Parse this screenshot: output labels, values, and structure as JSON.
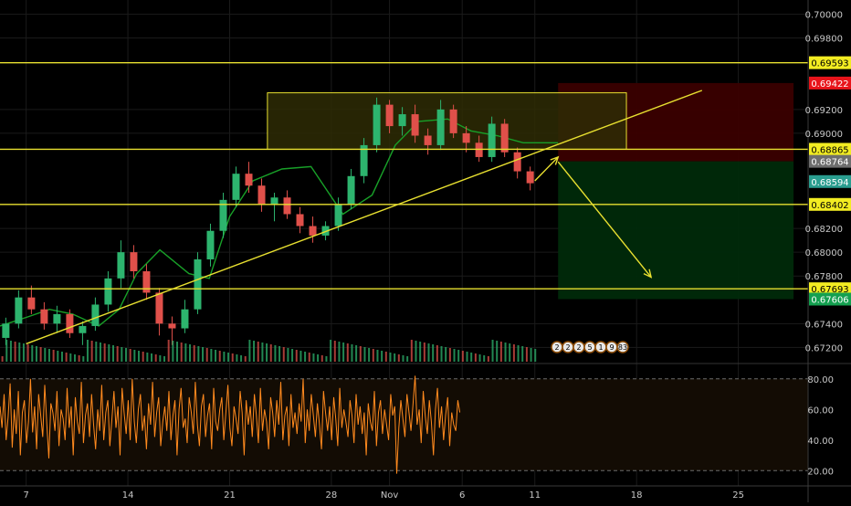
{
  "colors": {
    "background": "#000000",
    "gridline": "#1b1b1b",
    "axis_text": "#c8c8c8",
    "level_line": "#e8e030",
    "label_yellow_bg": "#f2ec22",
    "label_red_bg": "#e8141a",
    "label_gray_bg": "#6e6e6e",
    "label_teal_bg": "#2a9d8f",
    "label_green_bg": "#14a050",
    "candle_up": "#2db46e",
    "candle_down": "#e0504a",
    "ma_line": "#18a028",
    "stop_zone": "#3a0000",
    "target_zone": "#002a0a",
    "supply_zone": "#2e2c05",
    "osc_line": "#ff8a1e",
    "osc_band": "#130c04"
  },
  "chart_data": [
    {
      "type": "candlestick",
      "panel": "price",
      "y_axis_ticks": [
        "0.70000",
        "0.69800",
        "0.69200",
        "0.69000",
        "0.68200",
        "0.68000",
        "0.67800",
        "0.67400",
        "0.67200"
      ],
      "y_axis_tick_values": [
        0.7,
        0.698,
        0.692,
        0.69,
        0.682,
        0.68,
        0.678,
        0.674,
        0.672
      ],
      "x_axis_ticks": [
        "7",
        "14",
        "21",
        "28",
        "Nov",
        "6",
        "11",
        "18",
        "25"
      ],
      "x_axis_tick_values": [
        7,
        14,
        21,
        28,
        32,
        37,
        42,
        49,
        56
      ],
      "ylim": [
        0.6708,
        0.7012
      ],
      "xlim": [
        5.2,
        60.8
      ],
      "price_labels": [
        {
          "text": "0.69593",
          "value": 0.69593,
          "style": "yellow"
        },
        {
          "text": "0.69422",
          "value": 0.69422,
          "style": "red"
        },
        {
          "text": "0.68865",
          "value": 0.68865,
          "style": "yellow"
        },
        {
          "text": "0.68764",
          "value": 0.68764,
          "style": "gray"
        },
        {
          "text": "0.68594",
          "value": 0.68594,
          "style": "teal"
        },
        {
          "text": "0.68402",
          "value": 0.68402,
          "style": "yellow"
        },
        {
          "text": "0.67693",
          "value": 0.67693,
          "style": "yellow"
        },
        {
          "text": "0.67606",
          "value": 0.67606,
          "style": "green"
        }
      ],
      "horizontal_levels": [
        0.69593,
        0.68865,
        0.68402,
        0.67693
      ],
      "trendline": {
        "x": [
          7.0,
          53.5
        ],
        "y": [
          0.6723,
          0.6936
        ]
      },
      "supply_zone": {
        "x": [
          23.6,
          48.3
        ],
        "y": [
          0.68865,
          0.6934
        ]
      },
      "stop_zone": {
        "x": [
          43.6,
          59.8
        ],
        "y": [
          0.68764,
          0.69422
        ]
      },
      "target_zone": {
        "x": [
          43.6,
          59.8
        ],
        "y": [
          0.67606,
          0.68764
        ]
      },
      "arrows": [
        {
          "from": [
            42.0,
            0.686
          ],
          "to": [
            43.6,
            0.688
          ]
        },
        {
          "from": [
            43.6,
            0.6876
          ],
          "to": [
            50.0,
            0.6779
          ]
        }
      ],
      "candles_ohlc": [
        [
          0.6728,
          0.6745,
          0.6722,
          0.674
        ],
        [
          0.674,
          0.6768,
          0.6736,
          0.6762
        ],
        [
          0.6762,
          0.6772,
          0.6748,
          0.6752
        ],
        [
          0.6752,
          0.6758,
          0.6735,
          0.674
        ],
        [
          0.674,
          0.6755,
          0.6732,
          0.6748
        ],
        [
          0.6748,
          0.6752,
          0.6728,
          0.6732
        ],
        [
          0.6732,
          0.6742,
          0.6722,
          0.6738
        ],
        [
          0.6738,
          0.6762,
          0.6734,
          0.6756
        ],
        [
          0.6756,
          0.6784,
          0.675,
          0.6778
        ],
        [
          0.6778,
          0.681,
          0.677,
          0.68
        ],
        [
          0.68,
          0.6806,
          0.6778,
          0.6784
        ],
        [
          0.6784,
          0.679,
          0.676,
          0.6766
        ],
        [
          0.6766,
          0.677,
          0.673,
          0.674
        ],
        [
          0.674,
          0.6746,
          0.6722,
          0.6736
        ],
        [
          0.6736,
          0.676,
          0.6732,
          0.6752
        ],
        [
          0.6752,
          0.68,
          0.6748,
          0.6794
        ],
        [
          0.6794,
          0.6824,
          0.6788,
          0.6818
        ],
        [
          0.6818,
          0.685,
          0.6812,
          0.6844
        ],
        [
          0.6844,
          0.6872,
          0.6838,
          0.6866
        ],
        [
          0.6866,
          0.6876,
          0.685,
          0.6856
        ],
        [
          0.6856,
          0.6862,
          0.6834,
          0.684
        ],
        [
          0.684,
          0.685,
          0.6826,
          0.6846
        ],
        [
          0.6846,
          0.6852,
          0.6828,
          0.6832
        ],
        [
          0.6832,
          0.6838,
          0.6816,
          0.6822
        ],
        [
          0.6822,
          0.683,
          0.6808,
          0.6814
        ],
        [
          0.6814,
          0.6826,
          0.681,
          0.6822
        ],
        [
          0.6822,
          0.6846,
          0.6818,
          0.684
        ],
        [
          0.684,
          0.687,
          0.6836,
          0.6864
        ],
        [
          0.6864,
          0.6896,
          0.6858,
          0.689
        ],
        [
          0.689,
          0.693,
          0.6884,
          0.6924
        ],
        [
          0.6924,
          0.6928,
          0.69,
          0.6906
        ],
        [
          0.6906,
          0.6922,
          0.6898,
          0.6916
        ],
        [
          0.6916,
          0.6924,
          0.6892,
          0.6898
        ],
        [
          0.6898,
          0.6904,
          0.6882,
          0.689
        ],
        [
          0.689,
          0.6928,
          0.6886,
          0.692
        ],
        [
          0.692,
          0.6924,
          0.6896,
          0.69
        ],
        [
          0.69,
          0.6906,
          0.6884,
          0.6892
        ],
        [
          0.6892,
          0.6898,
          0.6876,
          0.688
        ],
        [
          0.688,
          0.6914,
          0.6876,
          0.6908
        ],
        [
          0.6908,
          0.6912,
          0.688,
          0.6884
        ],
        [
          0.6884,
          0.6888,
          0.6862,
          0.6868
        ],
        [
          0.6868,
          0.6872,
          0.6852,
          0.6858
        ]
      ],
      "candle_x_start": 5.6,
      "candle_x_step": 0.88,
      "ma_line": {
        "x": [
          5.2,
          7.2,
          8.6,
          10.2,
          12.0,
          13.4,
          14.6,
          16.2,
          18.2,
          19.6,
          21.0,
          22.6,
          24.6,
          26.6,
          28.8,
          30.8,
          32.4,
          34.0,
          36.0,
          37.6,
          39.4,
          41.2,
          43.6
        ],
        "y": [
          0.6738,
          0.6746,
          0.6752,
          0.6748,
          0.6738,
          0.6752,
          0.6782,
          0.6802,
          0.6782,
          0.6778,
          0.683,
          0.686,
          0.687,
          0.6872,
          0.6832,
          0.6848,
          0.689,
          0.691,
          0.6912,
          0.6902,
          0.6898,
          0.6892,
          0.6892
        ]
      }
    },
    {
      "type": "line",
      "panel": "oscillator",
      "y_axis_ticks": [
        "80.00",
        "60.00",
        "40.00",
        "20.00"
      ],
      "y_axis_tick_values": [
        80,
        60,
        40,
        20
      ],
      "ylim": [
        10,
        90
      ],
      "bands": [
        20,
        80
      ],
      "x_step": 0.14,
      "x_start": 5.2,
      "values": [
        62,
        48,
        70,
        40,
        55,
        77,
        35,
        60,
        44,
        72,
        30,
        58,
        66,
        38,
        52,
        80,
        45,
        62,
        34,
        70,
        56,
        42,
        76,
        50,
        28,
        64,
        58,
        46,
        72,
        36,
        60,
        54,
        40,
        74,
        48,
        62,
        30,
        68,
        52,
        44,
        78,
        38,
        56,
        64,
        42,
        70,
        50,
        34,
        60,
        46,
        76,
        40,
        58,
        66,
        36,
        54,
        72,
        48,
        62,
        30,
        74,
        58,
        44,
        66,
        40,
        80,
        52,
        38,
        60,
        70,
        46,
        56,
        34,
        64,
        50,
        78,
        42,
        58,
        68,
        36,
        52,
        62,
        46,
        72,
        40,
        56,
        66,
        30,
        60,
        74,
        48,
        54,
        38,
        68,
        58,
        44,
        78,
        50,
        36,
        62,
        70,
        42,
        56,
        64,
        34,
        74,
        52,
        46,
        60,
        68,
        40,
        58,
        76,
        48,
        36,
        62,
        54,
        44,
        72,
        58,
        30,
        66,
        50,
        62,
        42,
        70,
        56,
        38,
        74,
        46,
        60,
        52,
        34,
        68,
        58,
        42,
        66,
        50,
        78,
        40,
        56,
        62,
        36,
        70,
        48,
        58,
        44,
        64,
        52,
        80,
        38,
        60,
        46,
        70,
        56,
        42,
        64,
        50,
        34,
        72,
        58,
        46,
        62,
        40,
        68,
        54,
        36,
        74,
        48,
        60,
        52,
        42,
        66,
        56,
        38,
        70,
        50,
        62,
        44,
        58,
        30,
        64,
        52,
        46,
        72,
        36,
        58,
        66,
        44,
        60,
        50,
        40,
        70,
        56,
        62,
        18,
        48,
        66,
        54,
        42,
        70,
        58,
        46,
        64,
        82,
        50,
        60,
        38,
        72,
        56,
        44,
        66,
        52,
        30,
        60,
        74,
        48,
        62,
        40,
        56,
        68,
        36,
        58,
        50,
        46,
        66,
        58
      ]
    }
  ],
  "mini_flags": [
    "2",
    "2",
    "2",
    "5",
    "1",
    "9",
    "83"
  ]
}
